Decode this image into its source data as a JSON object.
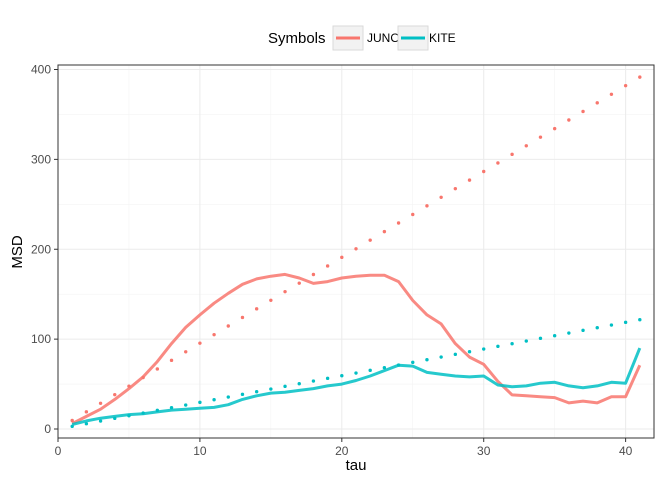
{
  "chart_data": {
    "type": "line",
    "xlabel": "tau",
    "ylabel": "MSD",
    "xlim": [
      0,
      42
    ],
    "ylim": [
      -10,
      405
    ],
    "x_ticks": [
      0,
      10,
      20,
      30,
      40
    ],
    "y_ticks": [
      0,
      100,
      200,
      300,
      400
    ],
    "grid": true,
    "legend": {
      "title": "Symbols",
      "position": "top",
      "entries": [
        "JUNO",
        "KITE"
      ]
    },
    "x": [
      1,
      2,
      3,
      4,
      5,
      6,
      7,
      8,
      9,
      10,
      11,
      12,
      13,
      14,
      15,
      16,
      17,
      18,
      19,
      20,
      21,
      22,
      23,
      24,
      25,
      26,
      27,
      28,
      29,
      30,
      31,
      32,
      33,
      34,
      35,
      36,
      37,
      38,
      39,
      40,
      41
    ],
    "series": [
      {
        "name": "JUNO",
        "kind": "empirical",
        "style": "solid",
        "color": "#F8766D",
        "values": [
          6,
          14,
          22,
          33,
          45,
          58,
          75,
          95,
          113,
          127,
          140,
          151,
          161,
          167,
          170,
          172,
          168,
          162,
          164,
          168,
          170,
          171,
          171,
          164,
          143,
          127,
          117,
          95,
          80,
          72,
          53,
          38,
          37,
          36,
          35,
          29,
          31,
          29,
          36,
          36,
          71
        ]
      },
      {
        "name": "KITE",
        "kind": "empirical",
        "style": "solid",
        "color": "#00BFC4",
        "values": [
          5,
          9,
          12,
          14,
          16,
          17,
          19,
          21,
          22,
          23,
          24,
          27,
          33,
          37,
          40,
          41,
          43,
          45,
          48,
          50,
          54,
          59,
          65,
          71,
          70,
          63,
          61,
          59,
          58,
          59,
          49,
          47,
          48,
          51,
          52,
          48,
          46,
          48,
          52,
          51,
          90
        ]
      },
      {
        "name": "JUNO",
        "kind": "theoretical",
        "style": "dotted",
        "color": "#F8766D",
        "values": [
          9.5,
          19.1,
          28.6,
          38.2,
          47.7,
          57.3,
          66.8,
          76.4,
          85.9,
          95.5,
          105.0,
          114.6,
          124.1,
          133.7,
          143.2,
          152.8,
          162.3,
          171.9,
          181.4,
          191.0,
          200.5,
          210.1,
          219.6,
          229.2,
          238.7,
          248.3,
          257.8,
          267.4,
          276.9,
          286.5,
          296.0,
          305.6,
          315.1,
          324.7,
          334.2,
          343.8,
          353.3,
          362.9,
          372.4,
          382.0,
          391.5
        ]
      },
      {
        "name": "KITE",
        "kind": "theoretical",
        "style": "dotted",
        "color": "#00BFC4",
        "values": [
          3.0,
          5.9,
          8.9,
          11.9,
          14.8,
          17.8,
          20.8,
          23.7,
          26.7,
          29.7,
          32.6,
          35.6,
          38.6,
          41.5,
          44.5,
          47.5,
          50.4,
          53.4,
          56.4,
          59.3,
          62.3,
          65.3,
          68.2,
          71.2,
          74.2,
          77.1,
          80.1,
          83.1,
          86.0,
          89.0,
          92.0,
          94.9,
          97.9,
          100.9,
          103.8,
          106.8,
          109.8,
          112.7,
          115.7,
          118.7,
          121.6
        ]
      }
    ]
  }
}
